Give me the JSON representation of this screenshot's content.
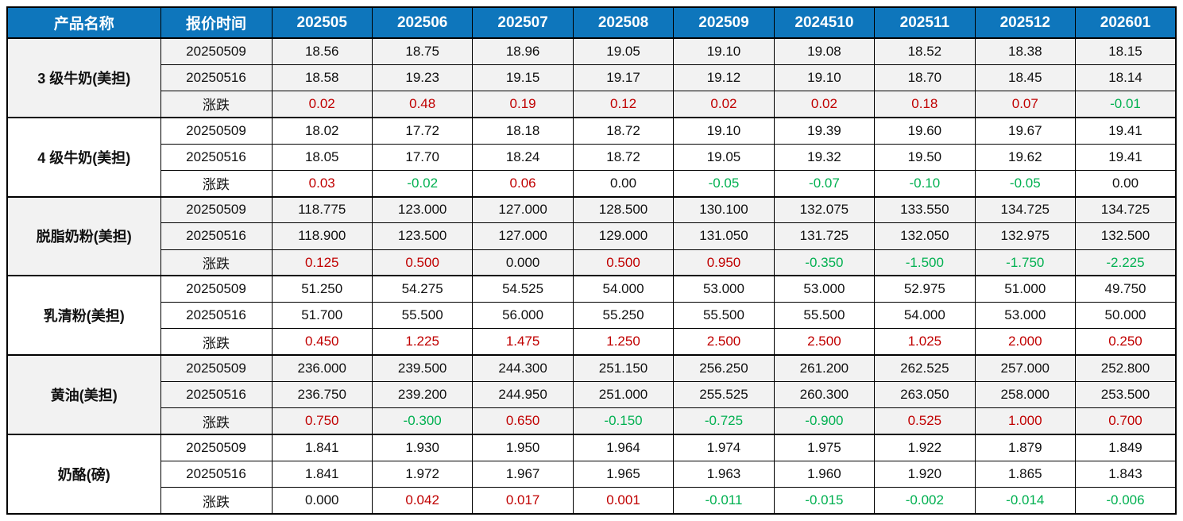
{
  "table": {
    "header": {
      "product_col": "产品名称",
      "time_col": "报价时间",
      "months": [
        "202505",
        "202506",
        "202507",
        "202508",
        "202509",
        "2024510",
        "202511",
        "202512",
        "202601"
      ]
    },
    "colors": {
      "header_bg": "#0E76BC",
      "header_text": "#FFFFFF",
      "band_bg": "#F2F2F2",
      "up_red": "#C00000",
      "down_green": "#00B050",
      "neutral_black": "#111111"
    },
    "change_label": "涨跌",
    "groups": [
      {
        "product": "3 级牛奶(美担)",
        "rows": [
          {
            "label": "20250509",
            "type": "price",
            "values": [
              "18.56",
              "18.75",
              "18.96",
              "19.05",
              "19.10",
              "19.08",
              "18.52",
              "18.38",
              "18.15"
            ]
          },
          {
            "label": "20250516",
            "type": "price",
            "values": [
              "18.58",
              "19.23",
              "19.15",
              "19.17",
              "19.12",
              "19.10",
              "18.70",
              "18.45",
              "18.14"
            ]
          },
          {
            "label": "涨跌",
            "type": "change",
            "values": [
              "0.02",
              "0.48",
              "0.19",
              "0.12",
              "0.02",
              "0.02",
              "0.18",
              "0.07",
              "-0.01"
            ]
          }
        ]
      },
      {
        "product": "4 级牛奶(美担)",
        "rows": [
          {
            "label": "20250509",
            "type": "price",
            "values": [
              "18.02",
              "17.72",
              "18.18",
              "18.72",
              "19.10",
              "19.39",
              "19.60",
              "19.67",
              "19.41"
            ]
          },
          {
            "label": "20250516",
            "type": "price",
            "values": [
              "18.05",
              "17.70",
              "18.24",
              "18.72",
              "19.05",
              "19.32",
              "19.50",
              "19.62",
              "19.41"
            ]
          },
          {
            "label": "涨跌",
            "type": "change",
            "values": [
              "0.03",
              "-0.02",
              "0.06",
              "0.00",
              "-0.05",
              "-0.07",
              "-0.10",
              "-0.05",
              "0.00"
            ]
          }
        ]
      },
      {
        "product": "脱脂奶粉(美担)",
        "rows": [
          {
            "label": "20250509",
            "type": "price",
            "values": [
              "118.775",
              "123.000",
              "127.000",
              "128.500",
              "130.100",
              "132.075",
              "133.550",
              "134.725",
              "134.725"
            ]
          },
          {
            "label": "20250516",
            "type": "price",
            "values": [
              "118.900",
              "123.500",
              "127.000",
              "129.000",
              "131.050",
              "131.725",
              "132.050",
              "132.975",
              "132.500"
            ]
          },
          {
            "label": "涨跌",
            "type": "change",
            "values": [
              "0.125",
              "0.500",
              "0.000",
              "0.500",
              "0.950",
              "-0.350",
              "-1.500",
              "-1.750",
              "-2.225"
            ]
          }
        ]
      },
      {
        "product": "乳清粉(美担)",
        "rows": [
          {
            "label": "20250509",
            "type": "price",
            "values": [
              "51.250",
              "54.275",
              "54.525",
              "54.000",
              "53.000",
              "53.000",
              "52.975",
              "51.000",
              "49.750"
            ]
          },
          {
            "label": "20250516",
            "type": "price",
            "values": [
              "51.700",
              "55.500",
              "56.000",
              "55.250",
              "55.500",
              "55.500",
              "54.000",
              "53.000",
              "50.000"
            ]
          },
          {
            "label": "涨跌",
            "type": "change",
            "values": [
              "0.450",
              "1.225",
              "1.475",
              "1.250",
              "2.500",
              "2.500",
              "1.025",
              "2.000",
              "0.250"
            ]
          }
        ]
      },
      {
        "product": "黄油(美担)",
        "rows": [
          {
            "label": "20250509",
            "type": "price",
            "values": [
              "236.000",
              "239.500",
              "244.300",
              "251.150",
              "256.250",
              "261.200",
              "262.525",
              "257.000",
              "252.800"
            ]
          },
          {
            "label": "20250516",
            "type": "price",
            "values": [
              "236.750",
              "239.200",
              "244.950",
              "251.000",
              "255.525",
              "260.300",
              "263.050",
              "258.000",
              "253.500"
            ]
          },
          {
            "label": "涨跌",
            "type": "change",
            "values": [
              "0.750",
              "-0.300",
              "0.650",
              "-0.150",
              "-0.725",
              "-0.900",
              "0.525",
              "1.000",
              "0.700"
            ]
          }
        ]
      },
      {
        "product": "奶酪(磅)",
        "rows": [
          {
            "label": "20250509",
            "type": "price",
            "values": [
              "1.841",
              "1.930",
              "1.950",
              "1.964",
              "1.974",
              "1.975",
              "1.922",
              "1.879",
              "1.849"
            ]
          },
          {
            "label": "20250516",
            "type": "price",
            "values": [
              "1.841",
              "1.972",
              "1.967",
              "1.965",
              "1.963",
              "1.960",
              "1.920",
              "1.865",
              "1.843"
            ]
          },
          {
            "label": "涨跌",
            "type": "change",
            "values": [
              "0.000",
              "0.042",
              "0.017",
              "0.001",
              "-0.011",
              "-0.015",
              "-0.002",
              "-0.014",
              "-0.006"
            ]
          }
        ]
      }
    ]
  }
}
